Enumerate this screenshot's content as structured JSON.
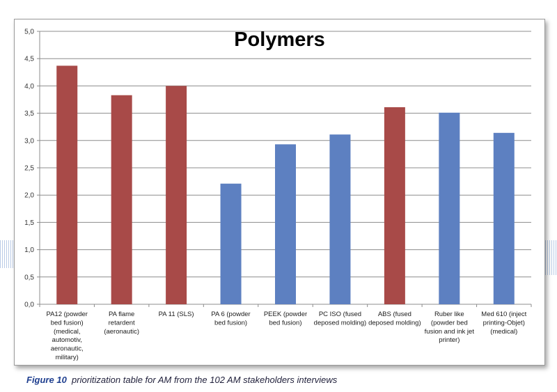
{
  "chart_data": {
    "type": "bar",
    "title": "Polymers",
    "categories": [
      [
        "PA12 (powder",
        "bed fusion)",
        "(medical,",
        "automotiv,",
        "aeronautic,",
        "military)"
      ],
      [
        "PA  flame",
        "retardent",
        "(aeronautic)"
      ],
      [
        "PA 11 (SLS)"
      ],
      [
        "PA 6 (powder",
        "bed fusion)"
      ],
      [
        "PEEK (powder",
        "bed fusion)"
      ],
      [
        "PC ISO (fused",
        "deposed molding)"
      ],
      [
        "ABS  (fused",
        "deposed molding)"
      ],
      [
        "Ruber like",
        "(powder bed",
        "fusion and ink jet",
        "printer)"
      ],
      [
        "Med 610 (inject",
        "printing-Objet)",
        "(medical)"
      ]
    ],
    "values": [
      4.37,
      3.83,
      4.0,
      2.21,
      2.93,
      3.11,
      3.61,
      3.51,
      3.14
    ],
    "bar_colors": [
      "#a84a48",
      "#a84a48",
      "#a84a48",
      "#5d80c1",
      "#5d80c1",
      "#5d80c1",
      "#a84a48",
      "#5d80c1",
      "#5d80c1"
    ],
    "ylim": [
      0,
      5
    ],
    "yticks": [
      "0,0",
      "0,5",
      "1,0",
      "1,5",
      "2,0",
      "2,5",
      "3,0",
      "3,5",
      "4,0",
      "4,5",
      "5,0"
    ],
    "grid": true,
    "legend": "none"
  },
  "caption": {
    "figure_label": "Figure 10",
    "text": "prioritization table for AM from the 102 AM stakeholders interviews"
  }
}
